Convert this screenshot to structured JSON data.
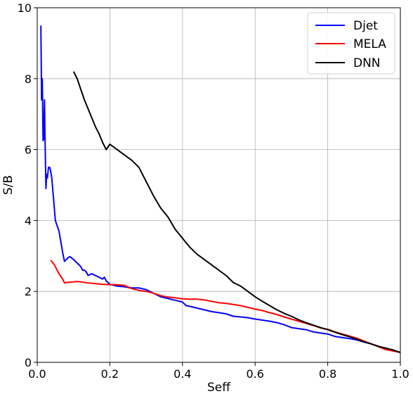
{
  "chart_data": {
    "type": "line",
    "title": "",
    "xlabel": "Seff",
    "ylabel": "S/B",
    "xlim": [
      0,
      1.0
    ],
    "ylim": [
      0,
      10
    ],
    "xticks": [
      0,
      0.2,
      0.4,
      0.6,
      0.8,
      1.0
    ],
    "xtick_labels": [
      "0.0",
      "0.2",
      "0.4",
      "0.6",
      "0.8",
      "1.0"
    ],
    "yticks": [
      0,
      2,
      4,
      6,
      8,
      10
    ],
    "ytick_labels": [
      "0",
      "2",
      "4",
      "6",
      "8",
      "10"
    ],
    "grid": true,
    "legend_position": "top-right",
    "series": [
      {
        "name": "Djet",
        "color": "#0000ff",
        "x": [
          0.01,
          0.012,
          0.014,
          0.016,
          0.018,
          0.02,
          0.022,
          0.024,
          0.026,
          0.028,
          0.031,
          0.034,
          0.037,
          0.04,
          0.045,
          0.05,
          0.06,
          0.065,
          0.07,
          0.075,
          0.08,
          0.085,
          0.09,
          0.1,
          0.11,
          0.12,
          0.125,
          0.13,
          0.135,
          0.14,
          0.15,
          0.16,
          0.17,
          0.18,
          0.185,
          0.19,
          0.2,
          0.22,
          0.24,
          0.26,
          0.28,
          0.3,
          0.32,
          0.34,
          0.36,
          0.38,
          0.4,
          0.41,
          0.42,
          0.44,
          0.46,
          0.48,
          0.5,
          0.52,
          0.54,
          0.56,
          0.58,
          0.6,
          0.62,
          0.64,
          0.66,
          0.68,
          0.7,
          0.72,
          0.74,
          0.76,
          0.78,
          0.8,
          0.82,
          0.84,
          0.86,
          0.88,
          0.9,
          0.92,
          0.94,
          0.96,
          0.98,
          1.0
        ],
        "y": [
          9.5,
          7.4,
          8.0,
          6.25,
          6.3,
          7.4,
          6.0,
          4.9,
          5.3,
          5.2,
          5.5,
          5.5,
          5.4,
          5.2,
          4.6,
          4.0,
          3.7,
          3.4,
          3.1,
          2.85,
          2.9,
          2.95,
          2.98,
          2.9,
          2.8,
          2.7,
          2.6,
          2.6,
          2.55,
          2.45,
          2.5,
          2.45,
          2.4,
          2.35,
          2.4,
          2.3,
          2.2,
          2.15,
          2.13,
          2.1,
          2.1,
          2.05,
          1.95,
          1.85,
          1.8,
          1.75,
          1.7,
          1.6,
          1.58,
          1.53,
          1.48,
          1.43,
          1.4,
          1.37,
          1.3,
          1.28,
          1.26,
          1.22,
          1.19,
          1.16,
          1.12,
          1.06,
          0.98,
          0.95,
          0.92,
          0.86,
          0.83,
          0.8,
          0.73,
          0.7,
          0.67,
          0.63,
          0.57,
          0.52,
          0.45,
          0.4,
          0.33,
          0.28
        ]
      },
      {
        "name": "MELA",
        "color": "#ff0000",
        "x": [
          0.037,
          0.045,
          0.05,
          0.055,
          0.06,
          0.065,
          0.07,
          0.075,
          0.08,
          0.09,
          0.1,
          0.11,
          0.12,
          0.14,
          0.16,
          0.18,
          0.2,
          0.22,
          0.24,
          0.26,
          0.28,
          0.3,
          0.32,
          0.34,
          0.36,
          0.38,
          0.4,
          0.42,
          0.44,
          0.46,
          0.48,
          0.5,
          0.52,
          0.54,
          0.56,
          0.58,
          0.6,
          0.62,
          0.64,
          0.66,
          0.68,
          0.7,
          0.72,
          0.74,
          0.76,
          0.78,
          0.8,
          0.82,
          0.84,
          0.86,
          0.88,
          0.9,
          0.92,
          0.94,
          0.96,
          0.98,
          1.0
        ],
        "y": [
          2.88,
          2.78,
          2.7,
          2.6,
          2.5,
          2.42,
          2.35,
          2.24,
          2.25,
          2.26,
          2.27,
          2.28,
          2.27,
          2.24,
          2.22,
          2.2,
          2.19,
          2.19,
          2.17,
          2.08,
          2.03,
          2.0,
          1.95,
          1.88,
          1.84,
          1.82,
          1.79,
          1.78,
          1.78,
          1.76,
          1.72,
          1.68,
          1.66,
          1.63,
          1.6,
          1.55,
          1.5,
          1.46,
          1.4,
          1.35,
          1.28,
          1.22,
          1.16,
          1.1,
          1.04,
          0.97,
          0.93,
          0.86,
          0.8,
          0.74,
          0.68,
          0.6,
          0.52,
          0.44,
          0.36,
          0.32,
          0.28
        ]
      },
      {
        "name": "DNN",
        "color": "#000000",
        "x": [
          0.1,
          0.11,
          0.12,
          0.13,
          0.14,
          0.15,
          0.16,
          0.17,
          0.18,
          0.19,
          0.2,
          0.22,
          0.24,
          0.26,
          0.28,
          0.29,
          0.3,
          0.32,
          0.34,
          0.36,
          0.38,
          0.4,
          0.42,
          0.44,
          0.46,
          0.48,
          0.5,
          0.52,
          0.54,
          0.56,
          0.58,
          0.6,
          0.62,
          0.64,
          0.66,
          0.68,
          0.7,
          0.72,
          0.74,
          0.76,
          0.78,
          0.8,
          0.82,
          0.84,
          0.86,
          0.88,
          0.9,
          0.92,
          0.94,
          0.96,
          0.98,
          1.0
        ],
        "y": [
          8.2,
          8.0,
          7.7,
          7.4,
          7.15,
          6.9,
          6.65,
          6.45,
          6.2,
          6.0,
          6.15,
          6.0,
          5.85,
          5.7,
          5.5,
          5.3,
          5.1,
          4.7,
          4.35,
          4.1,
          3.75,
          3.5,
          3.25,
          3.05,
          2.9,
          2.75,
          2.6,
          2.45,
          2.25,
          2.15,
          2.0,
          1.85,
          1.72,
          1.6,
          1.48,
          1.38,
          1.3,
          1.2,
          1.12,
          1.05,
          0.98,
          0.92,
          0.85,
          0.78,
          0.72,
          0.65,
          0.58,
          0.52,
          0.45,
          0.4,
          0.35,
          0.28
        ]
      }
    ]
  }
}
